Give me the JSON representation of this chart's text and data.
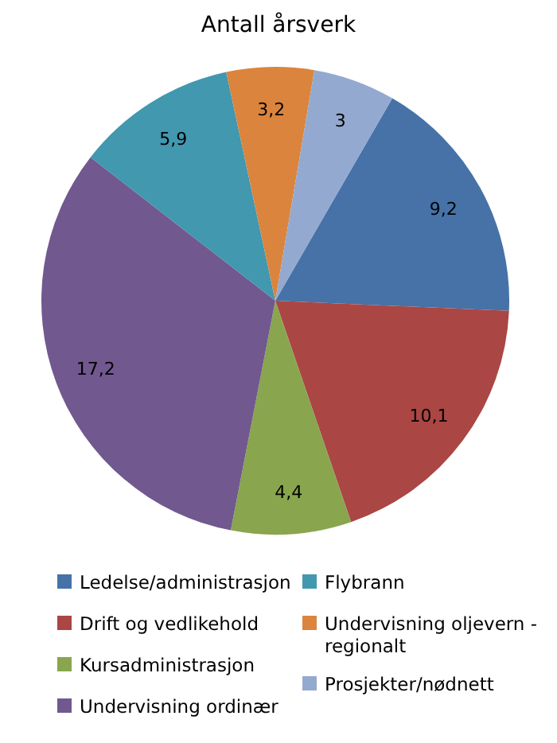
{
  "chart_data": {
    "type": "pie",
    "title": "Antall årsverk",
    "categories": [
      "Ledelse/administrasjon",
      "Drift og vedlikehold",
      "Kursadministrasjon",
      "Undervisning ordinær",
      "Flybrann",
      "Undervisning oljevern - regionalt",
      "Prosjekter/nødnett"
    ],
    "values": [
      9.2,
      10.1,
      4.4,
      17.2,
      5.9,
      3.2,
      3
    ],
    "colors": [
      "#4672a8",
      "#aa4644",
      "#89a54e",
      "#71588f",
      "#4198af",
      "#db843d",
      "#93a9cf"
    ],
    "value_labels": [
      "9,2",
      "10,1",
      "4,4",
      "17,2",
      "5,9",
      "3,2",
      "3"
    ],
    "legend": "bottom"
  }
}
